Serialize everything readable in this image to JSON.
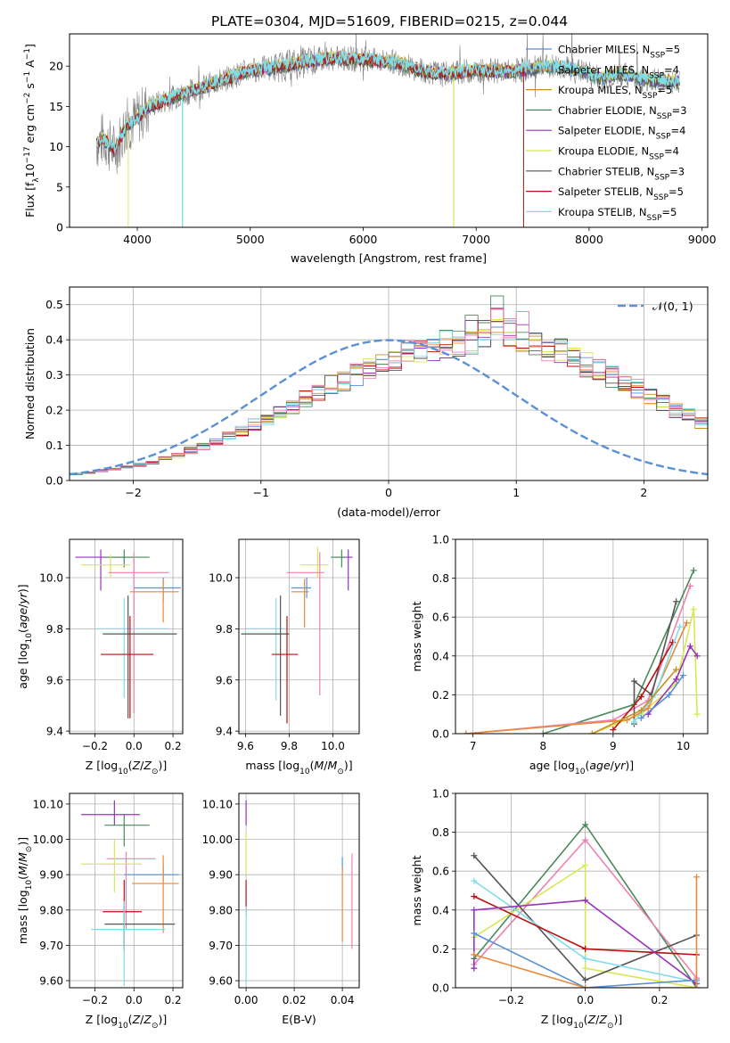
{
  "title": "PLATE=0304, MJD=51609, FIBERID=0215, z=0.044",
  "colors": {
    "cm": "#5b8fd6",
    "sm": "#e8893a",
    "km": "#c89020",
    "ce": "#4a8a5a",
    "se": "#9933bb",
    "ke": "#d8e850",
    "cs": "#555555",
    "ss": "#bb1111",
    "ks": "#7fdde8",
    "gauss": "#5b8fd6",
    "pink": "#ee80b0"
  },
  "chart_data": [
    {
      "id": "spectrum",
      "type": "line",
      "xlabel": "wavelength [Angstrom, rest frame]",
      "ylabel": "Flux [f_λ10^-17 erg cm^-2 s^-1 A^-1]",
      "xlim": [
        3400,
        9050
      ],
      "ylim": [
        0,
        24
      ],
      "xticks": [
        4000,
        5000,
        6000,
        7000,
        8000,
        9000
      ],
      "yticks": [
        0,
        5,
        10,
        15,
        20
      ],
      "legend_position": "upper right",
      "grid": false,
      "series": [
        {
          "key": "cm",
          "name": "Chabrier MILES, N_SSP=5"
        },
        {
          "key": "sm",
          "name": "Salpeter MILES, N_SSP=4"
        },
        {
          "key": "km",
          "name": "Kroupa MILES, N_SSP=5"
        },
        {
          "key": "ce",
          "name": "Chabrier ELODIE, N_SSP=3"
        },
        {
          "key": "se",
          "name": "Salpeter ELODIE, N_SSP=4"
        },
        {
          "key": "ke",
          "name": "Kroupa ELODIE, N_SSP=4"
        },
        {
          "key": "cs",
          "name": "Chabrier STELIB, N_SSP=3"
        },
        {
          "key": "ss",
          "name": "Salpeter STELIB, N_SSP=5"
        },
        {
          "key": "ks",
          "name": "Kroupa STELIB, N_SSP=5"
        }
      ],
      "continuum": {
        "x": [
          3650,
          3700,
          3800,
          3900,
          4000,
          4100,
          4200,
          4300,
          4500,
          4700,
          5000,
          5300,
          5500,
          5700,
          6000,
          6300,
          6500,
          6700,
          7000,
          7300,
          7500,
          7700,
          7900,
          8100,
          8300,
          8500,
          8800
        ],
        "y": [
          10.5,
          11,
          9.5,
          12.5,
          13.5,
          15,
          15.5,
          16,
          17,
          18,
          19.5,
          20,
          20.5,
          21,
          20.8,
          20.5,
          19.5,
          19,
          19.5,
          19.3,
          19.7,
          20,
          19.5,
          18.5,
          19,
          18.3,
          18
        ]
      }
    },
    {
      "id": "residuals",
      "type": "histogram",
      "xlabel": "(data-model)/error",
      "ylabel": "Normed distribution",
      "xlim": [
        -2.5,
        2.5
      ],
      "ylim": [
        0,
        0.55
      ],
      "xticks": [
        -2,
        -1,
        0,
        1,
        2
      ],
      "yticks": [
        0,
        0.1,
        0.2,
        0.3,
        0.4,
        0.5
      ],
      "grid": true,
      "legend": "𝒩(0, 1)",
      "legend_position": "upper right",
      "bin_width": 0.1,
      "bin_start": -2.5,
      "base": [
        0.018,
        0.022,
        0.028,
        0.032,
        0.038,
        0.045,
        0.052,
        0.062,
        0.072,
        0.085,
        0.098,
        0.11,
        0.125,
        0.142,
        0.16,
        0.175,
        0.195,
        0.21,
        0.23,
        0.25,
        0.27,
        0.285,
        0.3,
        0.318,
        0.335,
        0.35,
        0.362,
        0.372,
        0.382,
        0.39,
        0.395,
        0.4,
        0.42,
        0.445,
        0.42,
        0.405,
        0.395,
        0.38,
        0.365,
        0.35,
        0.33,
        0.315,
        0.295,
        0.275,
        0.26,
        0.24,
        0.22,
        0.2,
        0.185,
        0.165,
        0.145,
        0.13,
        0.115,
        0.1,
        0.088,
        0.075,
        0.063,
        0.053,
        0.044,
        0.036,
        0.03,
        0.025,
        0.02,
        0.017
      ],
      "series_keys": [
        "cm",
        "sm",
        "km",
        "ce",
        "se",
        "ke",
        "cs",
        "ss",
        "ks",
        "pink"
      ]
    },
    {
      "id": "age_vs_Z",
      "type": "errorbar",
      "xlabel": "Z [log10(Z/Z⊙)]",
      "ylabel": "age  [log10(age/yr)]",
      "xlim": [
        -0.33,
        0.25
      ],
      "ylim": [
        9.39,
        10.15
      ],
      "xticks": [
        -0.2,
        0.0,
        0.2
      ],
      "yticks": [
        9.4,
        9.6,
        9.8,
        10.0
      ],
      "grid": true,
      "points": [
        {
          "key": "se",
          "x": -0.17,
          "y": 10.08,
          "xe": [
            0.13,
            0.17
          ],
          "ye": [
            0.13,
            0.03
          ]
        },
        {
          "key": "ce",
          "x": -0.05,
          "y": 10.08,
          "xe": [
            0.1,
            0.13
          ],
          "ye": [
            0.04,
            0.03
          ]
        },
        {
          "key": "ke",
          "x": -0.12,
          "y": 10.05,
          "xe": [
            0.15,
            0.1
          ],
          "ye": [
            0.05,
            0.04
          ]
        },
        {
          "key": "pink",
          "x": 0.0,
          "y": 10.02,
          "xe": [
            0.13,
            0.18
          ],
          "ye": [
            0.55,
            0.08
          ]
        },
        {
          "key": "cm",
          "x": 0.15,
          "y": 9.96,
          "xe": [
            0.15,
            0.09
          ],
          "ye": [
            0.05,
            0.04
          ]
        },
        {
          "key": "sm",
          "x": 0.15,
          "y": 9.945,
          "xe": [
            0.17,
            0.08
          ],
          "ye": [
            0.12,
            0.05
          ]
        },
        {
          "key": "ks",
          "x": -0.05,
          "y": 9.8,
          "xe": [
            0.14,
            0.23
          ],
          "ye": [
            0.27,
            0.12
          ]
        },
        {
          "key": "cs",
          "x": -0.03,
          "y": 9.78,
          "xe": [
            0.13,
            0.25
          ],
          "ye": [
            0.33,
            0.15
          ]
        },
        {
          "key": "ss",
          "x": -0.02,
          "y": 9.7,
          "xe": [
            0.15,
            0.12
          ],
          "ye": [
            0.25,
            0.15
          ]
        }
      ]
    },
    {
      "id": "age_vs_mass",
      "type": "errorbar",
      "xlabel": "mass [log10(M/M⊙)]",
      "ylabel": "",
      "xlim": [
        9.57,
        10.12
      ],
      "ylim": [
        9.39,
        10.15
      ],
      "xticks": [
        9.6,
        9.8,
        10.0
      ],
      "yticks": [
        9.4,
        9.6,
        9.8,
        10.0
      ],
      "grid": true,
      "points": [
        {
          "key": "se",
          "x": 10.07,
          "y": 10.08,
          "xe": [
            0.06,
            0.02
          ],
          "ye": [
            0.13,
            0.03
          ]
        },
        {
          "key": "ce",
          "x": 10.04,
          "y": 10.08,
          "xe": [
            0.05,
            0.02
          ],
          "ye": [
            0.04,
            0.03
          ]
        },
        {
          "key": "ke",
          "x": 9.93,
          "y": 10.05,
          "xe": [
            0.08,
            0.05
          ],
          "ye": [
            0.05,
            0.07
          ]
        },
        {
          "key": "pink",
          "x": 9.94,
          "y": 10.02,
          "xe": [
            0.15,
            0.02
          ],
          "ye": [
            0.48,
            0.08
          ]
        },
        {
          "key": "cm",
          "x": 9.88,
          "y": 9.96,
          "xe": [
            0.07,
            0.02
          ],
          "ye": [
            0.04,
            0.04
          ]
        },
        {
          "key": "sm",
          "x": 9.87,
          "y": 9.945,
          "xe": [
            0.06,
            0.02
          ],
          "ye": [
            0.14,
            0.05
          ]
        },
        {
          "key": "ks",
          "x": 9.74,
          "y": 9.8,
          "xe": [
            0.14,
            0.04
          ],
          "ye": [
            0.28,
            0.12
          ]
        },
        {
          "key": "cs",
          "x": 9.76,
          "y": 9.78,
          "xe": [
            0.18,
            0.04
          ],
          "ye": [
            0.32,
            0.15
          ]
        },
        {
          "key": "ss",
          "x": 9.79,
          "y": 9.7,
          "xe": [
            0.07,
            0.05
          ],
          "ye": [
            0.27,
            0.15
          ]
        }
      ]
    },
    {
      "id": "weight_vs_age",
      "type": "line",
      "xlabel": "age  [log10(age/yr)]",
      "ylabel": "mass weight",
      "xlim": [
        6.75,
        10.35
      ],
      "ylim": [
        0,
        1.0
      ],
      "xticks": [
        7,
        8,
        9,
        10
      ],
      "yticks": [
        0.0,
        0.2,
        0.4,
        0.6,
        0.8,
        1.0
      ],
      "grid": true,
      "series": [
        {
          "key": "ce",
          "x": [
            8.0,
            9.3,
            10.15
          ],
          "y": [
            0.0,
            0.15,
            0.84
          ]
        },
        {
          "key": "pink",
          "x": [
            6.9,
            9.0,
            9.5,
            10.1
          ],
          "y": [
            0.0,
            0.07,
            0.17,
            0.76
          ]
        },
        {
          "key": "ke",
          "x": [
            8.7,
            9.4,
            9.9,
            10.15,
            10.2
          ],
          "y": [
            0.0,
            0.1,
            0.26,
            0.64,
            0.1
          ]
        },
        {
          "key": "cs",
          "x": [
            9.3,
            9.3,
            9.55,
            9.9
          ],
          "y": [
            0.05,
            0.27,
            0.2,
            0.68
          ]
        },
        {
          "key": "sm",
          "x": [
            6.9,
            9.2,
            9.5,
            10.05
          ],
          "y": [
            0.0,
            0.07,
            0.13,
            0.57
          ]
        },
        {
          "key": "se",
          "x": [
            9.5,
            9.9,
            10.1,
            10.2
          ],
          "y": [
            0.1,
            0.28,
            0.45,
            0.4
          ]
        },
        {
          "key": "ss",
          "x": [
            9.0,
            9.4,
            9.85
          ],
          "y": [
            0.02,
            0.19,
            0.47
          ]
        },
        {
          "key": "ks",
          "x": [
            9.3,
            9.6,
            9.95
          ],
          "y": [
            0.06,
            0.2,
            0.55
          ]
        },
        {
          "key": "cm",
          "x": [
            9.4,
            9.8,
            10.0
          ],
          "y": [
            0.08,
            0.2,
            0.3
          ]
        },
        {
          "key": "km",
          "x": [
            8.7,
            9.4,
            9.9
          ],
          "y": [
            0.0,
            0.12,
            0.33
          ]
        }
      ]
    },
    {
      "id": "mass_vs_Z",
      "type": "errorbar",
      "xlabel": "Z [log10(Z/Z⊙)]",
      "ylabel": "mass [log10(M/M⊙)]",
      "xlim": [
        -0.33,
        0.25
      ],
      "ylim": [
        9.58,
        10.13
      ],
      "xticks": [
        -0.2,
        0.0,
        0.2
      ],
      "yticks": [
        9.6,
        9.7,
        9.8,
        9.9,
        10.0,
        10.1
      ],
      "grid": true,
      "points": [
        {
          "key": "se",
          "x": -0.1,
          "y": 10.07,
          "xe": [
            0.17,
            0.13
          ],
          "ye": [
            0.03,
            0.04
          ]
        },
        {
          "key": "ce",
          "x": -0.05,
          "y": 10.04,
          "xe": [
            0.1,
            0.13
          ],
          "ye": [
            0.06,
            0.03
          ]
        },
        {
          "key": "pink",
          "x": -0.04,
          "y": 9.945,
          "xe": [
            0.1,
            0.15
          ],
          "ye": [
            0.2,
            0.02
          ]
        },
        {
          "key": "ke",
          "x": -0.1,
          "y": 9.93,
          "xe": [
            0.17,
            0.14
          ],
          "ye": [
            0.08,
            0.07
          ]
        },
        {
          "key": "cm",
          "x": 0.15,
          "y": 9.9,
          "xe": [
            0.2,
            0.08
          ],
          "ye": [
            0.02,
            0.03
          ]
        },
        {
          "key": "sm",
          "x": 0.15,
          "y": 9.875,
          "xe": [
            0.16,
            0.08
          ],
          "ye": [
            0.14,
            0.08
          ]
        },
        {
          "key": "ss",
          "x": -0.05,
          "y": 9.795,
          "xe": [
            0.11,
            0.09
          ],
          "ye": [
            0.11,
            0.09
          ]
        },
        {
          "key": "cs",
          "x": -0.05,
          "y": 9.76,
          "xe": [
            0.1,
            0.26
          ],
          "ye": [
            0.06,
            0.05
          ]
        },
        {
          "key": "ks",
          "x": -0.05,
          "y": 9.745,
          "xe": [
            0.17,
            0.21
          ],
          "ye": [
            0.16,
            0.08
          ]
        }
      ]
    },
    {
      "id": "mass_vs_ebv",
      "type": "errorbar",
      "xlabel": "E(B-V)",
      "ylabel": "",
      "xlim": [
        -0.003,
        0.047
      ],
      "ylim": [
        9.58,
        10.13
      ],
      "xticks": [
        0.0,
        0.02,
        0.04
      ],
      "yticks": [
        9.6,
        9.7,
        9.8,
        9.9,
        10.0,
        10.1
      ],
      "grid": true,
      "points": [
        {
          "key": "se",
          "x": 0.0,
          "y": 10.07,
          "xe": [
            0,
            0
          ],
          "ye": [
            0.03,
            0.04
          ]
        },
        {
          "key": "ke",
          "x": 0.0,
          "y": 9.98,
          "xe": [
            0,
            0
          ],
          "ye": [
            0.08,
            0.04
          ]
        },
        {
          "key": "ss",
          "x": 0.0,
          "y": 9.845,
          "xe": [
            0,
            0
          ],
          "ye": [
            0.06,
            0.04
          ]
        },
        {
          "key": "ks",
          "x": 0.0,
          "y": 9.75,
          "xe": [
            0,
            0
          ],
          "ye": [
            0.16,
            0.06
          ]
        },
        {
          "key": "cm",
          "x": 0.04,
          "y": 9.93,
          "xe": [
            0,
            0
          ],
          "ye": [
            0.02,
            0.02
          ]
        },
        {
          "key": "sm",
          "x": 0.04,
          "y": 9.82,
          "xe": [
            0,
            0
          ],
          "ye": [
            0.11,
            0.1
          ]
        },
        {
          "key": "pink",
          "x": 0.044,
          "y": 9.83,
          "xe": [
            0,
            0
          ],
          "ye": [
            0.14,
            0.13
          ]
        }
      ]
    },
    {
      "id": "weight_vs_Z",
      "type": "line",
      "xlabel": "Z [log10(Z/Z⊙)]",
      "ylabel": "mass weight",
      "xlim": [
        -0.35,
        0.33
      ],
      "ylim": [
        0,
        1.0
      ],
      "xticks": [
        -0.2,
        0.0,
        0.2
      ],
      "yticks": [
        0.0,
        0.2,
        0.4,
        0.6,
        0.8,
        1.0
      ],
      "grid": true,
      "series": [
        {
          "key": "ce",
          "x": [
            -0.3,
            0.0,
            0.3
          ],
          "y": [
            0.15,
            0.84,
            0.0
          ]
        },
        {
          "key": "pink",
          "x": [
            -0.3,
            0.0,
            0.3
          ],
          "y": [
            0.12,
            0.76,
            0.05
          ]
        },
        {
          "key": "ke",
          "x": [
            -0.3,
            0.0,
            0.0,
            0.3
          ],
          "y": [
            0.26,
            0.63,
            0.1,
            0.0
          ]
        },
        {
          "key": "cs",
          "x": [
            -0.3,
            0.0,
            0.3
          ],
          "y": [
            0.68,
            0.04,
            0.27
          ]
        },
        {
          "key": "ks",
          "x": [
            -0.3,
            0.0,
            0.3
          ],
          "y": [
            0.55,
            0.15,
            0.03
          ]
        },
        {
          "key": "ss",
          "x": [
            -0.3,
            0.0,
            0.3
          ],
          "y": [
            0.47,
            0.2,
            0.17
          ]
        },
        {
          "key": "se",
          "x": [
            -0.3,
            -0.3,
            0.0,
            0.3
          ],
          "y": [
            0.1,
            0.4,
            0.45,
            0.02
          ]
        },
        {
          "key": "cm",
          "x": [
            -0.3,
            0.0,
            0.3
          ],
          "y": [
            0.28,
            0.0,
            0.04
          ]
        },
        {
          "key": "sm",
          "x": [
            -0.3,
            0.0,
            0.3,
            0.3
          ],
          "y": [
            0.17,
            0.0,
            0.0,
            0.57
          ]
        }
      ]
    }
  ]
}
